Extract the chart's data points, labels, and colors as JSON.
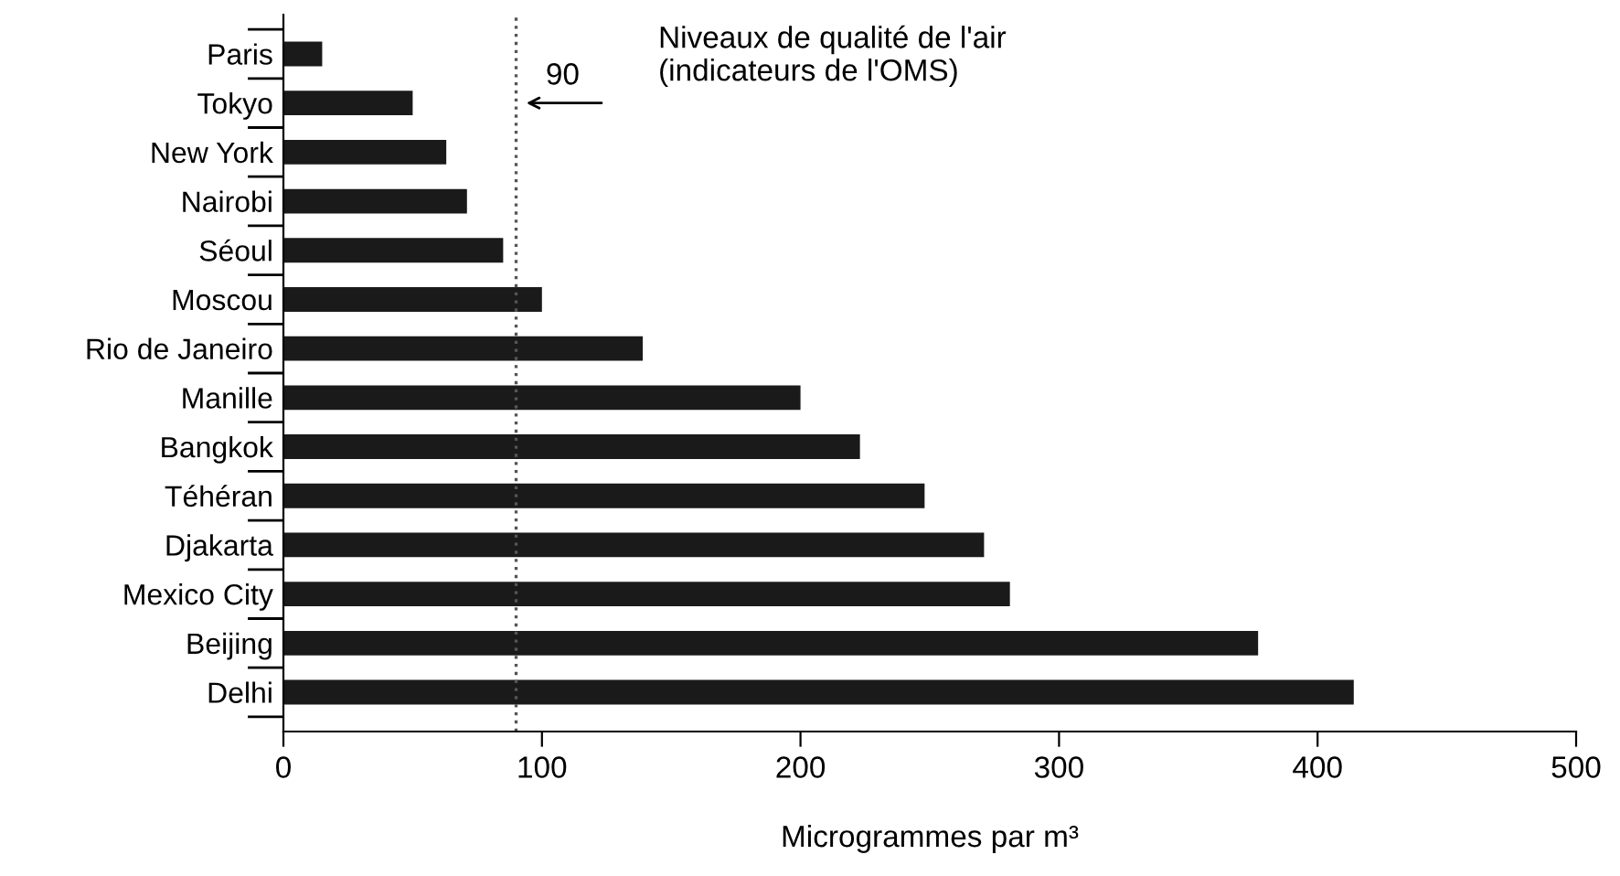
{
  "chart_data": {
    "type": "bar",
    "orientation": "horizontal",
    "xlabel": "Microgrammes par m³",
    "categories": [
      "Paris",
      "Tokyo",
      "New York",
      "Nairobi",
      "Séoul",
      "Moscou",
      "Rio de Janeiro",
      "Manille",
      "Bangkok",
      "Téhéran",
      "Djakarta",
      "Mexico City",
      "Beijing",
      "Delhi"
    ],
    "values": [
      15,
      50,
      63,
      71,
      85,
      100,
      139,
      200,
      223,
      248,
      271,
      281,
      377,
      414
    ],
    "color": "#1a1a1a",
    "xlim": [
      0,
      500
    ],
    "xticks": [
      0,
      100,
      200,
      300,
      400,
      500
    ],
    "grid": false,
    "legend": false,
    "ref_lines": [
      {
        "axis": "x",
        "value": 90,
        "label": "90",
        "color": "#555555",
        "line_style": "dotted"
      }
    ],
    "annotations": [
      "Niveaux de qualité de l'air\n(indicateurs de l'OMS)"
    ]
  }
}
